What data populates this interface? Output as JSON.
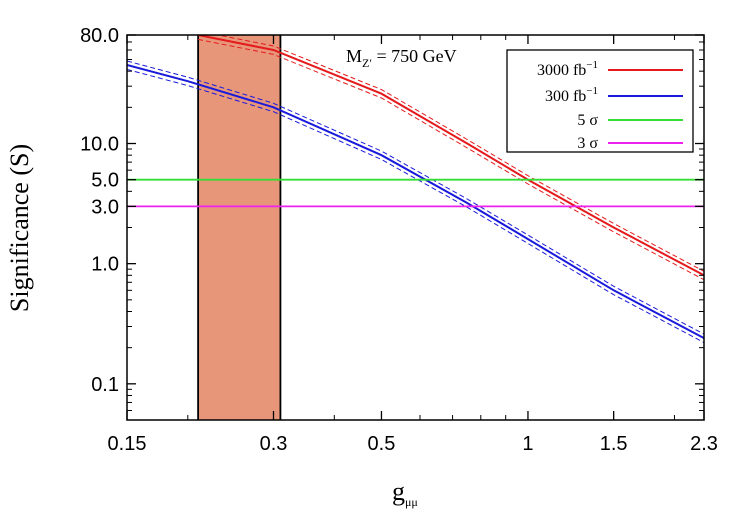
{
  "chart_data": {
    "type": "line",
    "title": "",
    "annotation": {
      "main": "M",
      "sub": "Z′",
      "rest": " = 750 GeV"
    },
    "xlabel": {
      "main": "g",
      "sub": "μμ"
    },
    "ylabel": "Significance (S)",
    "x_scale": "log",
    "y_scale": "log",
    "xlim": [
      0.15,
      2.3
    ],
    "ylim": [
      0.05,
      80.0
    ],
    "x_ticks": [
      0.15,
      0.3,
      0.5,
      1,
      1.5,
      2.3
    ],
    "x_tick_labels": [
      "0.15",
      "0.3",
      "0.5",
      "1",
      "1.5",
      "2.3"
    ],
    "y_ticks": [
      0.1,
      1.0,
      3.0,
      5.0,
      10.0,
      80.0
    ],
    "y_tick_labels": [
      "0.1",
      "1.0",
      "3.0",
      "5.0",
      "10.0",
      "80.0"
    ],
    "shaded_band": {
      "x_range": [
        0.21,
        0.31
      ],
      "color": "#e8967a"
    },
    "series": [
      {
        "name": "3000 fb",
        "sup": "−1",
        "color": "#e41a1c",
        "style": "solid",
        "x": [
          0.21,
          0.3,
          0.5,
          0.75,
          1.0,
          1.5,
          2.3
        ],
        "y": [
          80.0,
          60.0,
          26.0,
          10.0,
          5.0,
          2.0,
          0.8
        ],
        "band": [
          0.92,
          1.08
        ]
      },
      {
        "name": "300 fb",
        "sup": "−1",
        "color": "#1a1adb",
        "style": "solid",
        "x": [
          0.15,
          0.2,
          0.3,
          0.5,
          0.75,
          1.0,
          1.5,
          2.3
        ],
        "y": [
          45.0,
          33.0,
          20.0,
          8.0,
          3.2,
          1.6,
          0.6,
          0.24
        ],
        "band": [
          0.92,
          1.08
        ]
      },
      {
        "name": "5 σ",
        "color": "#33dd33",
        "style": "hline",
        "y_value": 5.0
      },
      {
        "name": "3 σ",
        "color": "#ee22ee",
        "style": "hline",
        "y_value": 3.0
      }
    ],
    "legend_position": "top-right",
    "grid": false
  }
}
